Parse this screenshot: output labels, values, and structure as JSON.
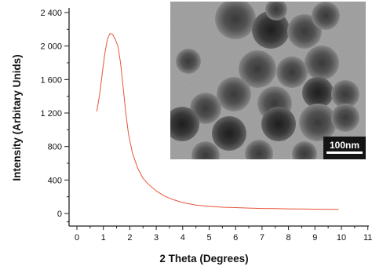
{
  "chart_data": {
    "type": "line",
    "title": "",
    "xlabel": "2 Theta (Degrees)",
    "ylabel": "Intensity (Arbitary Unids)",
    "xlim": [
      -0.6,
      11
    ],
    "ylim": [
      -110,
      2400
    ],
    "x_ticks": [
      0,
      1,
      2,
      3,
      4,
      5,
      6,
      7,
      8,
      9,
      10,
      11
    ],
    "x_tick_labels": [
      "0",
      "1",
      "2",
      "3",
      "4",
      "5",
      "6",
      "7",
      "8",
      "9",
      "10",
      "11"
    ],
    "y_ticks": [
      0,
      400,
      800,
      1200,
      1600,
      2000,
      2400
    ],
    "y_tick_labels": [
      "0",
      "400",
      "800",
      "1 200",
      "1 600",
      "2 000",
      "2 400"
    ],
    "grid": false,
    "series": [
      {
        "color": "#e8553a",
        "x": [
          0.75,
          0.85,
          0.95,
          1.05,
          1.15,
          1.25,
          1.35,
          1.45,
          1.55,
          1.65,
          1.75,
          1.85,
          1.95,
          2.1,
          2.3,
          2.5,
          2.7,
          3.0,
          3.3,
          3.6,
          4.0,
          4.5,
          5.0,
          5.5,
          6.0,
          6.5,
          7.0,
          7.5,
          8.0,
          8.5,
          9.0,
          9.5,
          9.9
        ],
        "y": [
          1220,
          1400,
          1650,
          1900,
          2080,
          2150,
          2140,
          2080,
          2000,
          1800,
          1500,
          1200,
          950,
          720,
          540,
          420,
          350,
          270,
          210,
          170,
          130,
          100,
          85,
          75,
          70,
          65,
          60,
          58,
          55,
          53,
          52,
          51,
          50
        ]
      }
    ],
    "inset": {
      "description": "TEM micrograph of mesoporous nanospheres",
      "scale_bar_label": "100nm"
    }
  }
}
